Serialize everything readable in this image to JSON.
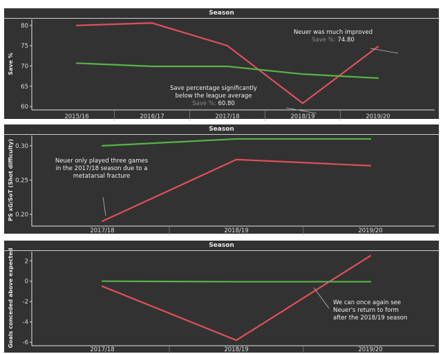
{
  "colors": {
    "background": "#323232",
    "neuer": "#e0505a",
    "league": "#57b548",
    "text": "#e6e6e6",
    "muted": "#8c8c8c"
  },
  "chart_data": [
    {
      "type": "line",
      "title": "Season",
      "ylabel": "Save %",
      "categories": [
        "2015/16",
        "2016/17",
        "2017/18",
        "2018/19",
        "2019/20"
      ],
      "yticks": [
        60,
        65,
        70,
        75,
        80
      ],
      "ylim": [
        59.5,
        81.5
      ],
      "series": [
        {
          "color": "#e0505a",
          "values": [
            80.0,
            80.6,
            75.0,
            60.8,
            74.8
          ]
        },
        {
          "color": "#57b548",
          "values": [
            70.7,
            69.9,
            69.9,
            68.0,
            67.0
          ]
        }
      ],
      "annotations": [
        {
          "lines": [
            "Neuer was much improved"
          ],
          "sub": "Save %:",
          "value": "74.80"
        },
        {
          "lines": [
            "Save percentage significantly",
            "below the league average"
          ],
          "sub": "Save %:",
          "value": "60.80"
        }
      ]
    },
    {
      "type": "line",
      "title": "Season",
      "ylabel": "PS xG/SoT (Shot difficulty)",
      "categories": [
        "2017/18",
        "2018/19",
        "2019/20"
      ],
      "yticks": [
        "0.20",
        "0.25",
        "0.30"
      ],
      "ylim": [
        0.185,
        0.315
      ],
      "series": [
        {
          "color": "#e0505a",
          "values": [
            0.19,
            0.28,
            0.271
          ]
        },
        {
          "color": "#57b548",
          "values": [
            0.3,
            0.31,
            0.31
          ]
        }
      ],
      "annotations": [
        {
          "lines": [
            "Neuer only played three games",
            "in the 2017/18 season due to a",
            "metatarsal fracture"
          ]
        }
      ]
    },
    {
      "type": "line",
      "title": "Season",
      "ylabel": "Goals conceded above expected",
      "categories": [
        "2017/18",
        "2018/19",
        "2019/20"
      ],
      "yticks": [
        -6,
        -4,
        -2,
        0,
        2
      ],
      "ylim": [
        -6.2,
        2.9
      ],
      "series": [
        {
          "color": "#e0505a",
          "values": [
            -0.5,
            -5.8,
            2.5
          ]
        },
        {
          "color": "#57b548",
          "values": [
            0.0,
            -0.05,
            -0.05
          ]
        }
      ],
      "annotations": [
        {
          "lines": [
            "We can once again see",
            "Neuer's return to form",
            "after the 2018/19 season"
          ]
        }
      ]
    }
  ]
}
